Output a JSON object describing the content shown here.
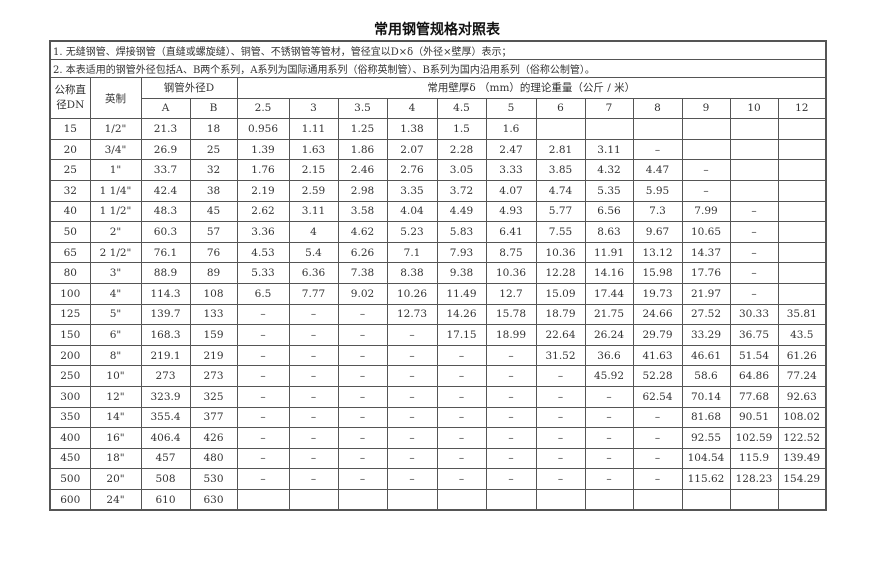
{
  "title": "常用钢管规格对照表",
  "notes": [
    "1. 无缝钢管、焊接钢管（直缝或螺旋缝）、铜管、不锈钢管等管材，管径宜以D×δ（外径×壁厚）表示；",
    "2. 本表适用的钢管外径包括A、B两个系列，A系列为国际通用系列（俗称英制管）、B系列为国内沿用系列（俗称公制管）。"
  ],
  "headers": {
    "dn": "公称直径DN",
    "inch": "英制",
    "od": "钢管外径D",
    "od_a": "A",
    "od_b": "B",
    "weight": "常用壁厚δ （mm）的理论重量（公斤 / 米）",
    "thickness": [
      "2.5",
      "3",
      "3.5",
      "4",
      "4.5",
      "5",
      "6",
      "7",
      "8",
      "9",
      "10",
      "12"
    ]
  },
  "rows": [
    [
      "15",
      "1/2\"",
      "21.3",
      "18",
      "0.956",
      "1.11",
      "1.25",
      "1.38",
      "1.5",
      "1.6",
      "",
      "",
      "",
      "",
      "",
      ""
    ],
    [
      "20",
      "3/4\"",
      "26.9",
      "25",
      "1.39",
      "1.63",
      "1.86",
      "2.07",
      "2.28",
      "2.47",
      "2.81",
      "3.11",
      "–",
      "",
      "",
      ""
    ],
    [
      "25",
      "1\"",
      "33.7",
      "32",
      "1.76",
      "2.15",
      "2.46",
      "2.76",
      "3.05",
      "3.33",
      "3.85",
      "4.32",
      "4.47",
      "–",
      "",
      ""
    ],
    [
      "32",
      "1 1/4\"",
      "42.4",
      "38",
      "2.19",
      "2.59",
      "2.98",
      "3.35",
      "3.72",
      "4.07",
      "4.74",
      "5.35",
      "5.95",
      "–",
      "",
      ""
    ],
    [
      "40",
      "1 1/2\"",
      "48.3",
      "45",
      "2.62",
      "3.11",
      "3.58",
      "4.04",
      "4.49",
      "4.93",
      "5.77",
      "6.56",
      "7.3",
      "7.99",
      "–",
      ""
    ],
    [
      "50",
      "2\"",
      "60.3",
      "57",
      "3.36",
      "4",
      "4.62",
      "5.23",
      "5.83",
      "6.41",
      "7.55",
      "8.63",
      "9.67",
      "10.65",
      "–",
      ""
    ],
    [
      "65",
      "2 1/2\"",
      "76.1",
      "76",
      "4.53",
      "5.4",
      "6.26",
      "7.1",
      "7.93",
      "8.75",
      "10.36",
      "11.91",
      "13.12",
      "14.37",
      "–",
      ""
    ],
    [
      "80",
      "3\"",
      "88.9",
      "89",
      "5.33",
      "6.36",
      "7.38",
      "8.38",
      "9.38",
      "10.36",
      "12.28",
      "14.16",
      "15.98",
      "17.76",
      "–",
      ""
    ],
    [
      "100",
      "4\"",
      "114.3",
      "108",
      "6.5",
      "7.77",
      "9.02",
      "10.26",
      "11.49",
      "12.7",
      "15.09",
      "17.44",
      "19.73",
      "21.97",
      "–",
      ""
    ],
    [
      "125",
      "5\"",
      "139.7",
      "133",
      "–",
      "–",
      "–",
      "12.73",
      "14.26",
      "15.78",
      "18.79",
      "21.75",
      "24.66",
      "27.52",
      "30.33",
      "35.81"
    ],
    [
      "150",
      "6\"",
      "168.3",
      "159",
      "–",
      "–",
      "–",
      "–",
      "17.15",
      "18.99",
      "22.64",
      "26.24",
      "29.79",
      "33.29",
      "36.75",
      "43.5"
    ],
    [
      "200",
      "8\"",
      "219.1",
      "219",
      "–",
      "–",
      "–",
      "–",
      "–",
      "–",
      "31.52",
      "36.6",
      "41.63",
      "46.61",
      "51.54",
      "61.26"
    ],
    [
      "250",
      "10\"",
      "273",
      "273",
      "–",
      "–",
      "–",
      "–",
      "–",
      "–",
      "–",
      "45.92",
      "52.28",
      "58.6",
      "64.86",
      "77.24"
    ],
    [
      "300",
      "12\"",
      "323.9",
      "325",
      "–",
      "–",
      "–",
      "–",
      "–",
      "–",
      "–",
      "–",
      "62.54",
      "70.14",
      "77.68",
      "92.63"
    ],
    [
      "350",
      "14\"",
      "355.4",
      "377",
      "–",
      "–",
      "–",
      "–",
      "–",
      "–",
      "–",
      "–",
      "–",
      "81.68",
      "90.51",
      "108.02"
    ],
    [
      "400",
      "16\"",
      "406.4",
      "426",
      "–",
      "–",
      "–",
      "–",
      "–",
      "–",
      "–",
      "–",
      "–",
      "92.55",
      "102.59",
      "122.52"
    ],
    [
      "450",
      "18\"",
      "457",
      "480",
      "–",
      "–",
      "–",
      "–",
      "–",
      "–",
      "–",
      "–",
      "–",
      "104.54",
      "115.9",
      "139.49"
    ],
    [
      "500",
      "20\"",
      "508",
      "530",
      "–",
      "–",
      "–",
      "–",
      "–",
      "–",
      "–",
      "–",
      "–",
      "115.62",
      "128.23",
      "154.29"
    ],
    [
      "600",
      "24\"",
      "610",
      "630",
      "",
      "",
      "",
      "",
      "",
      "",
      "",
      "",
      "",
      "",
      "",
      ""
    ]
  ]
}
